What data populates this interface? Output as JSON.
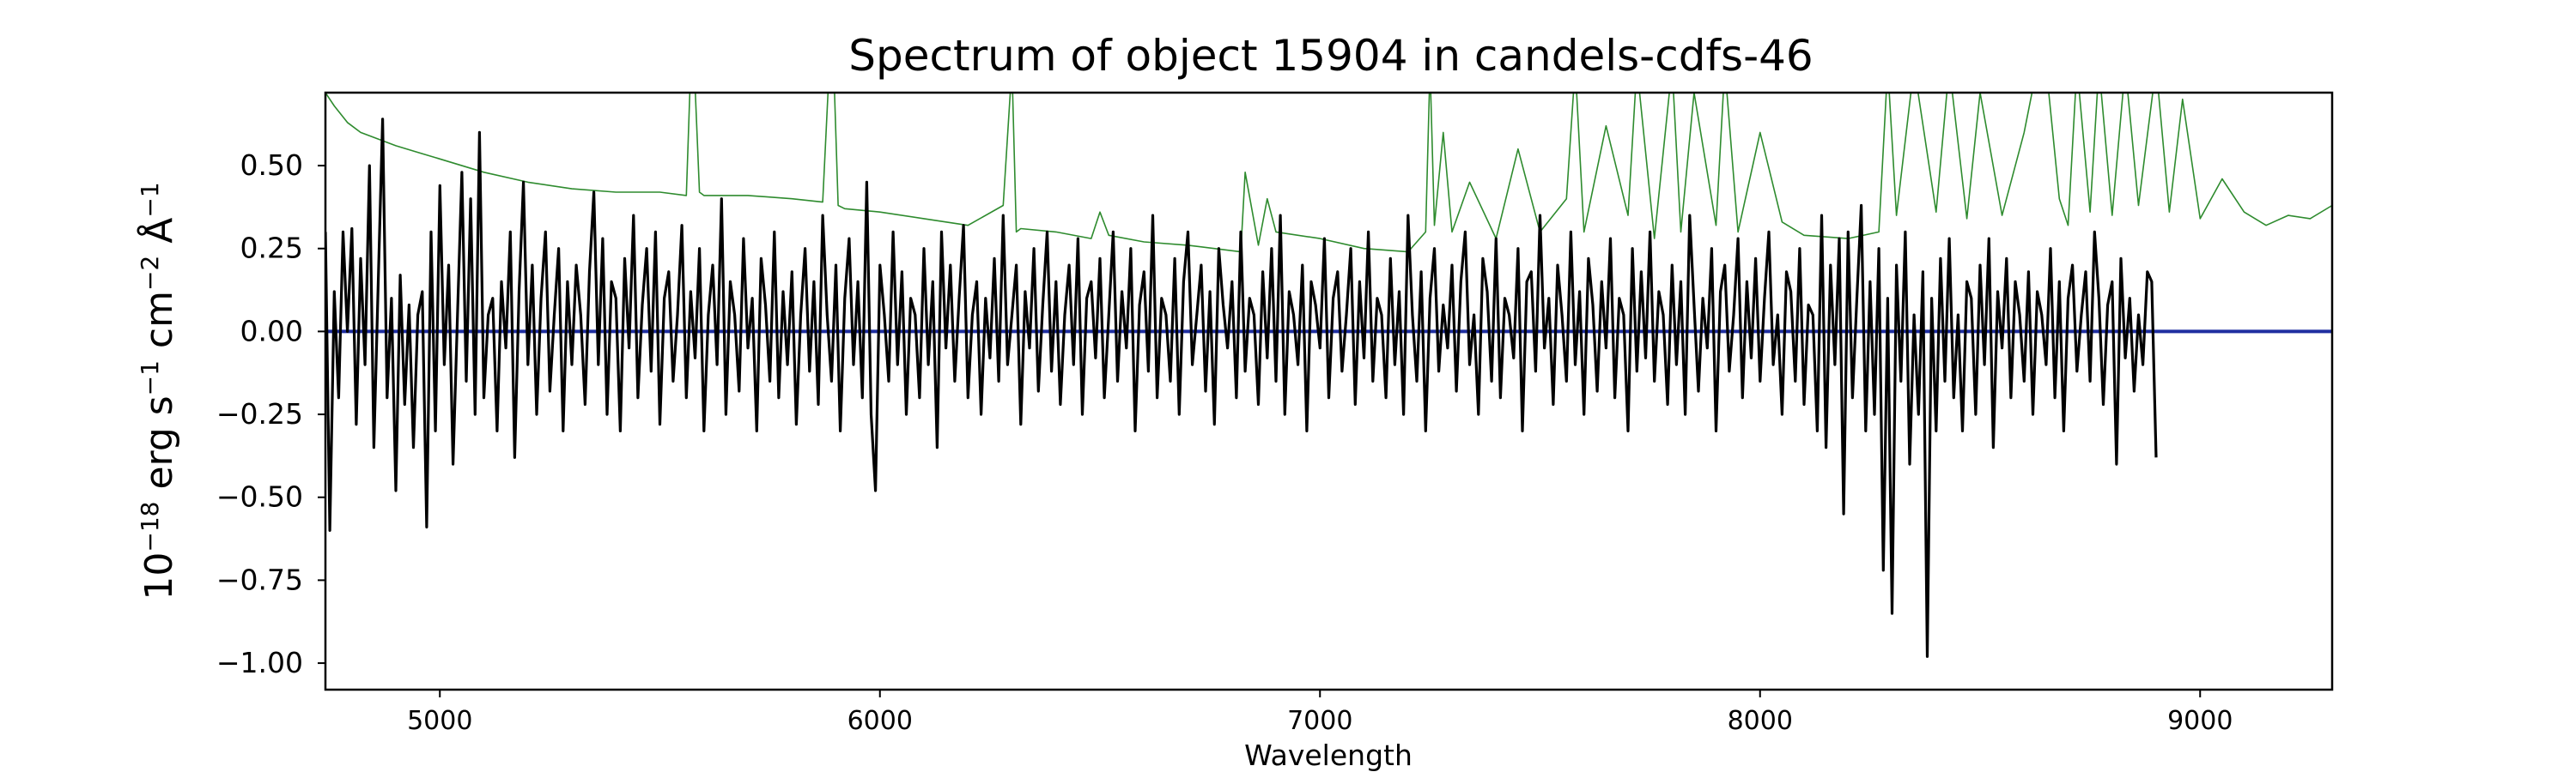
{
  "chart_data": {
    "type": "line",
    "title": "Spectrum of object 15904 in candels-cdfs-46",
    "xlabel": "Wavelength",
    "ylabel": {
      "base": "10",
      "exp": "−18",
      "unit1": " erg s",
      "exp2": "−1",
      "unit2": " cm",
      "exp3": "−2",
      "unit3": " Å",
      "exp4": "−1"
    },
    "xlim": [
      4740,
      9300
    ],
    "ylim": [
      -1.08,
      0.72
    ],
    "xticks": [
      5000,
      6000,
      7000,
      8000,
      9000
    ],
    "xtick_labels": [
      "5000",
      "6000",
      "7000",
      "8000",
      "9000"
    ],
    "yticks": [
      0.5,
      0.25,
      0.0,
      -0.25,
      -0.5,
      -0.75,
      -1.0
    ],
    "ytick_labels": [
      "0.50",
      "0.25",
      "0.00",
      "−0.25",
      "−0.50",
      "−0.75",
      "−1.00"
    ],
    "grid": false,
    "legend": "none",
    "series": [
      {
        "role": "sky",
        "color": "#2e8b2e",
        "x": [
          4740,
          4760,
          4790,
          4820,
          4860,
          4900,
          4950,
          5000,
          5100,
          5200,
          5300,
          5400,
          5500,
          5560,
          5570,
          5578,
          5590,
          5600,
          5700,
          5800,
          5870,
          5885,
          5895,
          5905,
          5920,
          6000,
          6100,
          6200,
          6280,
          6300,
          6310,
          6320,
          6400,
          6480,
          6500,
          6520,
          6600,
          6700,
          6820,
          6830,
          6860,
          6880,
          6900,
          7000,
          7100,
          7200,
          7240,
          7250,
          7260,
          7280,
          7300,
          7340,
          7400,
          7450,
          7500,
          7560,
          7580,
          7600,
          7650,
          7700,
          7720,
          7760,
          7800,
          7820,
          7850,
          7900,
          7920,
          7950,
          8000,
          8050,
          8100,
          8200,
          8270,
          8290,
          8310,
          8350,
          8400,
          8430,
          8470,
          8500,
          8550,
          8600,
          8630,
          8650,
          8680,
          8700,
          8720,
          8750,
          8770,
          8800,
          8830,
          8860,
          8900,
          8930,
          8960,
          9000,
          9050,
          9100,
          9150,
          9200,
          9250,
          9300
        ],
        "values": [
          0.72,
          0.68,
          0.63,
          0.6,
          0.58,
          0.56,
          0.54,
          0.52,
          0.48,
          0.45,
          0.43,
          0.42,
          0.42,
          0.41,
          0.8,
          0.8,
          0.42,
          0.41,
          0.41,
          0.4,
          0.39,
          0.8,
          0.8,
          0.38,
          0.37,
          0.36,
          0.34,
          0.32,
          0.38,
          0.8,
          0.3,
          0.31,
          0.3,
          0.28,
          0.36,
          0.29,
          0.27,
          0.26,
          0.24,
          0.48,
          0.26,
          0.4,
          0.3,
          0.28,
          0.25,
          0.24,
          0.3,
          0.8,
          0.32,
          0.6,
          0.3,
          0.45,
          0.28,
          0.55,
          0.3,
          0.4,
          0.8,
          0.3,
          0.62,
          0.35,
          0.8,
          0.28,
          0.8,
          0.3,
          0.72,
          0.32,
          0.8,
          0.3,
          0.6,
          0.33,
          0.29,
          0.28,
          0.3,
          0.8,
          0.35,
          0.8,
          0.36,
          0.8,
          0.34,
          0.72,
          0.35,
          0.6,
          0.8,
          0.8,
          0.4,
          0.32,
          0.8,
          0.36,
          0.8,
          0.35,
          0.8,
          0.38,
          0.8,
          0.36,
          0.7,
          0.34,
          0.46,
          0.36,
          0.32,
          0.35,
          0.34,
          0.38
        ]
      },
      {
        "role": "model",
        "color": "#1f2fa0",
        "x": [
          4740,
          9300
        ],
        "values": [
          0.0,
          0.0
        ]
      },
      {
        "role": "spectrum",
        "color": "#000000",
        "x_start": 4740,
        "x_step": 10,
        "values": [
          0.3,
          -0.6,
          0.12,
          -0.2,
          0.3,
          0.0,
          0.31,
          -0.28,
          0.22,
          -0.1,
          0.5,
          -0.35,
          0.15,
          0.64,
          -0.2,
          0.1,
          -0.48,
          0.17,
          -0.22,
          0.08,
          -0.35,
          0.05,
          0.12,
          -0.59,
          0.3,
          -0.3,
          0.44,
          -0.1,
          0.2,
          -0.4,
          0.05,
          0.48,
          -0.15,
          0.4,
          -0.25,
          0.6,
          -0.2,
          0.05,
          0.1,
          -0.3,
          0.15,
          -0.05,
          0.3,
          -0.38,
          0.12,
          0.45,
          -0.1,
          0.2,
          -0.25,
          0.1,
          0.3,
          -0.18,
          0.05,
          0.25,
          -0.3,
          0.15,
          -0.1,
          0.2,
          0.05,
          -0.22,
          0.18,
          0.42,
          -0.1,
          0.28,
          -0.25,
          0.15,
          0.1,
          -0.3,
          0.22,
          -0.05,
          0.35,
          -0.2,
          0.08,
          0.25,
          -0.12,
          0.3,
          -0.28,
          0.1,
          0.18,
          -0.15,
          0.05,
          0.32,
          -0.2,
          0.12,
          -0.08,
          0.25,
          -0.3,
          0.05,
          0.2,
          -0.1,
          0.4,
          -0.25,
          0.15,
          0.05,
          -0.18,
          0.28,
          -0.05,
          0.1,
          -0.3,
          0.22,
          0.08,
          -0.15,
          0.3,
          -0.2,
          0.12,
          -0.1,
          0.18,
          -0.28,
          0.05,
          0.25,
          -0.12,
          0.15,
          -0.22,
          0.35,
          0.05,
          -0.15,
          0.2,
          -0.3,
          0.1,
          0.28,
          -0.1,
          0.15,
          -0.2,
          0.45,
          -0.25,
          -0.48,
          0.2,
          0.05,
          -0.15,
          0.3,
          -0.1,
          0.18,
          -0.25,
          0.1,
          0.05,
          -0.2,
          0.25,
          -0.1,
          0.15,
          -0.35,
          0.3,
          -0.05,
          0.2,
          -0.15,
          0.1,
          0.32,
          -0.2,
          0.05,
          0.15,
          -0.25,
          0.1,
          -0.08,
          0.22,
          -0.15,
          0.35,
          -0.1,
          0.05,
          0.2,
          -0.28,
          0.12,
          -0.05,
          0.25,
          -0.18,
          0.08,
          0.3,
          -0.12,
          0.15,
          -0.22,
          0.05,
          0.2,
          -0.1,
          0.28,
          -0.25,
          0.1,
          0.15,
          -0.08,
          0.22,
          -0.2,
          0.05,
          0.3,
          -0.15,
          0.12,
          -0.05,
          0.25,
          -0.3,
          0.08,
          0.18,
          -0.12,
          0.35,
          -0.2,
          0.1,
          0.05,
          -0.15,
          0.22,
          -0.25,
          0.15,
          0.3,
          -0.1,
          0.05,
          0.2,
          -0.18,
          0.12,
          -0.28,
          0.25,
          0.08,
          -0.05,
          0.15,
          -0.2,
          0.3,
          -0.12,
          0.1,
          0.05,
          -0.22,
          0.18,
          -0.08,
          0.25,
          -0.15,
          0.35,
          -0.25,
          0.12,
          0.05,
          -0.1,
          0.2,
          -0.3,
          0.15,
          0.08,
          -0.05,
          0.28,
          -0.2,
          0.1,
          0.18,
          -0.12,
          0.05,
          0.25,
          -0.22,
          0.15,
          -0.08,
          0.3,
          -0.15,
          0.1,
          0.05,
          -0.2,
          0.22,
          -0.1,
          0.12,
          -0.25,
          0.35,
          0.05,
          -0.15,
          0.18,
          -0.3,
          0.1,
          0.25,
          -0.12,
          0.08,
          -0.05,
          0.2,
          -0.18,
          0.15,
          0.3,
          -0.1,
          0.05,
          -0.25,
          0.22,
          0.12,
          -0.15,
          0.28,
          -0.2,
          0.1,
          0.05,
          -0.08,
          0.25,
          -0.3,
          0.15,
          0.18,
          -0.12,
          0.35,
          -0.05,
          0.1,
          -0.22,
          0.2,
          0.05,
          -0.15,
          0.3,
          -0.1,
          0.12,
          -0.25,
          0.22,
          0.08,
          -0.18,
          0.15,
          -0.05,
          0.28,
          -0.2,
          0.1,
          0.05,
          -0.3,
          0.25,
          -0.12,
          0.18,
          -0.08,
          0.3,
          -0.15,
          0.12,
          0.05,
          -0.22,
          0.2,
          -0.1,
          0.15,
          -0.25,
          0.35,
          0.08,
          -0.18,
          0.1,
          -0.05,
          0.25,
          -0.3,
          0.12,
          0.2,
          -0.12,
          0.05,
          0.28,
          -0.2,
          0.15,
          -0.08,
          0.22,
          -0.15,
          0.1,
          0.3,
          -0.1,
          0.05,
          -0.25,
          0.18,
          0.12,
          -0.15,
          0.25,
          -0.22,
          0.08,
          0.05,
          -0.3,
          0.35,
          -0.35,
          0.2,
          -0.1,
          0.28,
          -0.55,
          0.3,
          -0.2,
          0.1,
          0.38,
          -0.3,
          0.15,
          -0.25,
          0.25,
          -0.72,
          0.1,
          -0.85,
          0.2,
          -0.15,
          0.3,
          -0.4,
          0.05,
          -0.25,
          0.18,
          -0.98,
          0.1,
          -0.3,
          0.22,
          -0.15,
          0.28,
          -0.2,
          0.05,
          -0.3,
          0.15,
          0.1,
          -0.25,
          0.2,
          -0.1,
          0.28,
          -0.35,
          0.12,
          -0.05,
          0.22,
          -0.2,
          0.15,
          0.05,
          -0.15,
          0.18,
          -0.25,
          0.12,
          0.05,
          -0.1,
          0.25,
          -0.2,
          0.15,
          -0.3,
          0.1,
          0.2,
          -0.12,
          0.05,
          0.18,
          -0.15,
          0.3,
          0.1,
          -0.22,
          0.08,
          0.15,
          -0.4,
          0.22,
          -0.08,
          0.1,
          -0.18,
          0.05,
          -0.1,
          0.18,
          0.15,
          -0.38
        ]
      }
    ]
  }
}
